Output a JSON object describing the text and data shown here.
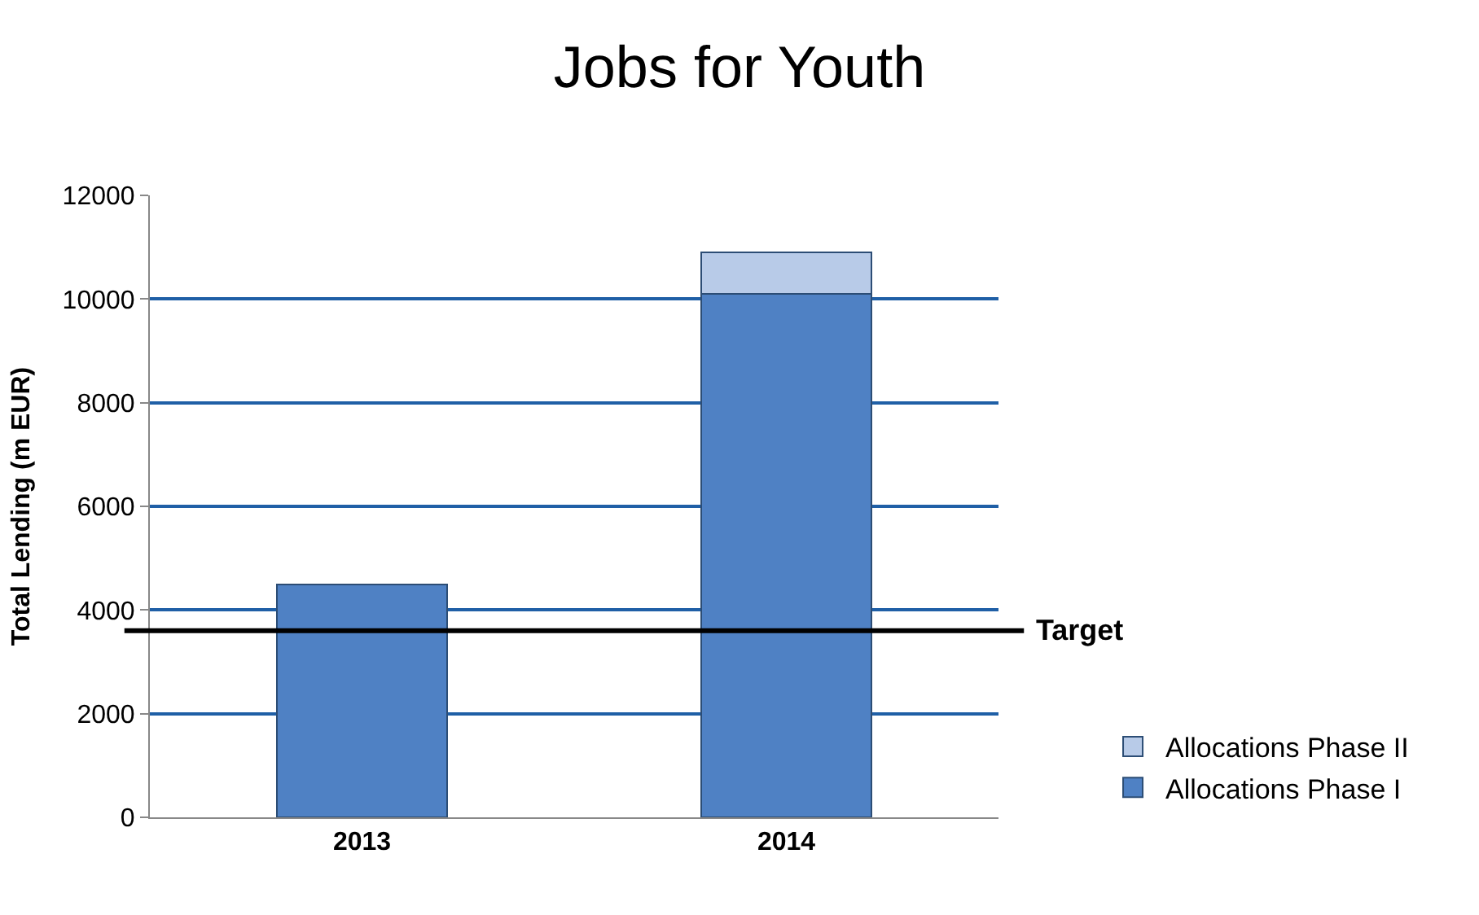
{
  "chart_data": {
    "type": "bar",
    "title": "Jobs for Youth",
    "ylabel": "Total Lending (m EUR)",
    "stacked": true,
    "categories": [
      "2013",
      "2014"
    ],
    "series": [
      {
        "name": "Allocations Phase I",
        "color": "#4f81c4",
        "values": [
          4500,
          10100
        ]
      },
      {
        "name": "Allocations Phase II",
        "color": "#b8cbe8",
        "values": [
          null,
          800
        ]
      }
    ],
    "ylim": [
      0,
      12000
    ],
    "yticks": [
      0,
      2000,
      4000,
      6000,
      8000,
      10000,
      12000
    ],
    "grid": "y",
    "legend": "bottom right",
    "ref_lines": [
      {
        "axis": "y",
        "value": 3600,
        "label": "Target",
        "color": "#000000",
        "line_style": "solid"
      }
    ]
  }
}
